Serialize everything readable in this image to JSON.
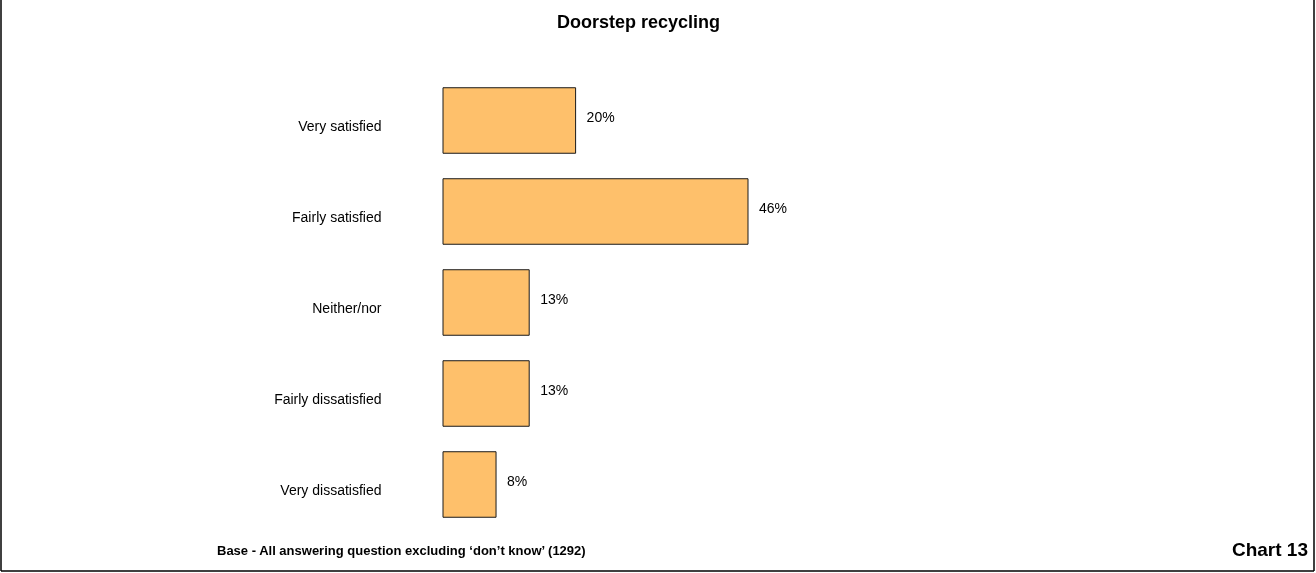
{
  "chart_data": {
    "type": "bar",
    "orientation": "horizontal",
    "title": "Doorstep recycling",
    "categories": [
      "Very satisfied",
      "Fairly satisfied",
      "Neither/nor",
      "Fairly dissatisfied",
      "Very dissatisfied"
    ],
    "values": [
      20,
      46,
      13,
      13,
      8
    ],
    "value_labels": [
      "20%",
      "46%",
      "13%",
      "13%",
      "8%"
    ],
    "color": "#fec06b",
    "annotations": [
      "Base - All answering question excluding ‘don’t know’ (1292)",
      "Chart 13"
    ]
  }
}
